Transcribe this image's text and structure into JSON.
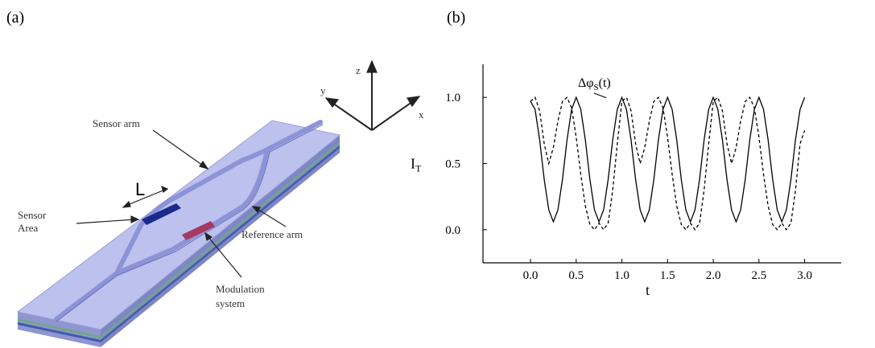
{
  "panel_a": {
    "label": "(a)",
    "labels": {
      "sensor_arm": "Sensor arm",
      "L": "L",
      "sensor_area": [
        "Sensor",
        "Area"
      ],
      "reference_arm": "Reference arm",
      "modulation": [
        "Modulation",
        "system"
      ],
      "z": "z",
      "y": "y",
      "x": "x"
    }
  },
  "panel_b": {
    "label": "(b)"
  },
  "chart_data": {
    "type": "line",
    "xlabel": "t",
    "ylabel": {
      "text": "I",
      "sub": "T"
    },
    "annotation": {
      "text": "Δφ",
      "sub": "S",
      "suffix": "(t)"
    },
    "x": [
      0,
      0.05,
      0.1,
      0.15,
      0.2,
      0.25,
      0.3,
      0.35,
      0.4,
      0.45,
      0.5,
      0.55,
      0.6,
      0.65,
      0.7,
      0.75,
      0.8,
      0.85,
      0.9,
      0.95,
      1,
      1.05,
      1.1,
      1.15,
      1.2,
      1.25,
      1.3,
      1.35,
      1.4,
      1.45,
      1.5,
      1.55,
      1.6,
      1.65,
      1.7,
      1.75,
      1.8,
      1.85,
      1.9,
      1.95,
      2,
      2.05,
      2.1,
      2.15,
      2.2,
      2.25,
      2.3,
      2.35,
      2.4,
      2.45,
      2.5,
      2.55,
      2.6,
      2.65,
      2.7,
      2.75,
      2.8,
      2.85,
      2.9,
      2.95,
      3
    ],
    "series": [
      {
        "line_style": "solid",
        "color": "#000000",
        "values": [
          0.97,
          0.91,
          0.68,
          0.38,
          0.15,
          0.06,
          0.15,
          0.38,
          0.68,
          0.91,
          1.0,
          0.91,
          0.68,
          0.38,
          0.15,
          0.06,
          0.15,
          0.38,
          0.68,
          0.91,
          1.0,
          0.91,
          0.68,
          0.38,
          0.15,
          0.06,
          0.15,
          0.38,
          0.68,
          0.91,
          1.0,
          0.91,
          0.68,
          0.38,
          0.15,
          0.06,
          0.15,
          0.38,
          0.68,
          0.91,
          1.0,
          0.91,
          0.68,
          0.38,
          0.15,
          0.06,
          0.15,
          0.38,
          0.68,
          0.91,
          1.0,
          0.91,
          0.68,
          0.38,
          0.15,
          0.06,
          0.15,
          0.38,
          0.68,
          0.91,
          1.0
        ]
      },
      {
        "line_style": "dashed",
        "color": "#000000",
        "values": [
          0.97,
          1.0,
          0.9,
          0.65,
          0.5,
          0.62,
          0.82,
          0.97,
          1.0,
          0.92,
          0.7,
          0.42,
          0.18,
          0.04,
          0.0,
          0.05,
          0.0,
          0.05,
          0.3,
          0.65,
          0.97,
          1.0,
          0.9,
          0.65,
          0.5,
          0.62,
          0.82,
          0.97,
          1.0,
          0.92,
          0.7,
          0.42,
          0.18,
          0.04,
          0.0,
          0.05,
          0.0,
          0.05,
          0.3,
          0.65,
          0.97,
          1.0,
          0.9,
          0.65,
          0.5,
          0.62,
          0.82,
          0.97,
          1.0,
          0.92,
          0.7,
          0.42,
          0.18,
          0.04,
          0.0,
          0.05,
          0.0,
          0.05,
          0.3,
          0.65,
          0.75
        ]
      }
    ],
    "xlim": [
      -0.52,
      3.4
    ],
    "ylim": [
      -0.25,
      1.25
    ],
    "xticks": [
      {
        "value": 0,
        "label": "0.0"
      },
      0.5,
      {
        "value": 1,
        "label": "1.0"
      },
      1.5,
      {
        "value": 2,
        "label": "2.0"
      },
      2.5,
      {
        "value": 3,
        "label": "3.0"
      }
    ],
    "yticks": [
      {
        "value": 0,
        "label": "0.0"
      },
      0.5,
      {
        "value": 1,
        "label": "1.0"
      }
    ]
  }
}
